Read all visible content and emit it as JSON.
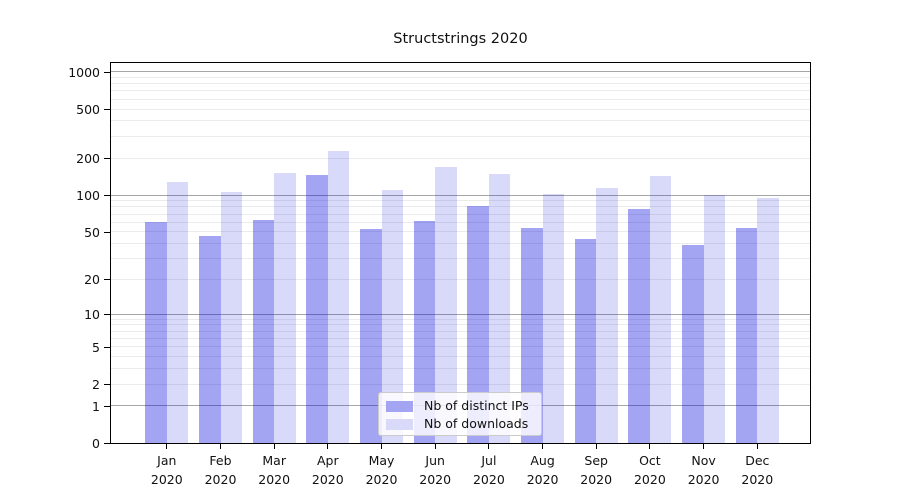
{
  "chart_data": {
    "type": "bar",
    "title": "Structstrings 2020",
    "xlabel": "",
    "ylabel": "",
    "yscale": "log1p",
    "ylim": [
      0,
      1210
    ],
    "yticks": [
      0,
      1,
      2,
      5,
      10,
      20,
      50,
      100,
      200,
      500,
      1000
    ],
    "grid": {
      "major": [
        1,
        10,
        100,
        1000
      ],
      "minor": [
        2,
        3,
        4,
        5,
        6,
        7,
        8,
        9,
        20,
        30,
        40,
        50,
        60,
        70,
        80,
        90,
        200,
        300,
        400,
        500,
        600,
        700,
        800,
        900
      ]
    },
    "categories": [
      "Jan 2020",
      "Feb 2020",
      "Mar 2020",
      "Apr 2020",
      "May 2020",
      "Jun 2020",
      "Jul 2020",
      "Aug 2020",
      "Sep 2020",
      "Oct 2020",
      "Nov 2020",
      "Dec 2020"
    ],
    "series": [
      {
        "name": "Nb of distinct IPs",
        "color": "rgba(0,5,220,0.36)",
        "legend_color": "#a3a4f2",
        "values": [
          60,
          46,
          62,
          145,
          53,
          61,
          81,
          54,
          44,
          77,
          39,
          54
        ]
      },
      {
        "name": "Nb of downloads",
        "color": "rgba(0,5,220,0.15)",
        "legend_color": "#d9daf9",
        "values": [
          128,
          105,
          152,
          230,
          110,
          168,
          149,
          102,
          114,
          143,
          101,
          95
        ]
      }
    ],
    "legend_position": "lower-center"
  },
  "colors": {
    "axis": "#000000",
    "grid_major": "#a6a6a6",
    "grid_minor": "#ebebeb",
    "background": "#ffffff"
  }
}
